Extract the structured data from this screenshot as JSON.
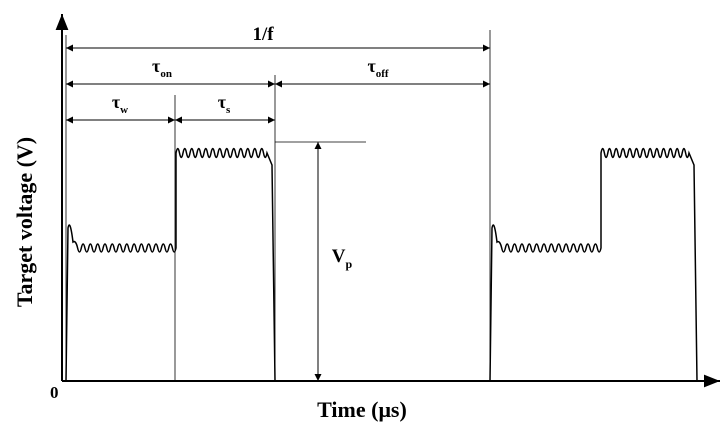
{
  "axes": {
    "y_label": "Target voltage (V)",
    "x_label": "Time (μs)",
    "origin": "0"
  },
  "labels": {
    "period": "1/f",
    "tau_on": {
      "base": "τ",
      "sub": "on"
    },
    "tau_off": {
      "base": "τ",
      "sub": "off"
    },
    "tau_w": {
      "base": "τ",
      "sub": "w"
    },
    "tau_s": {
      "base": "τ",
      "sub": "s"
    },
    "vp": {
      "base": "V",
      "sub": "p"
    }
  }
}
